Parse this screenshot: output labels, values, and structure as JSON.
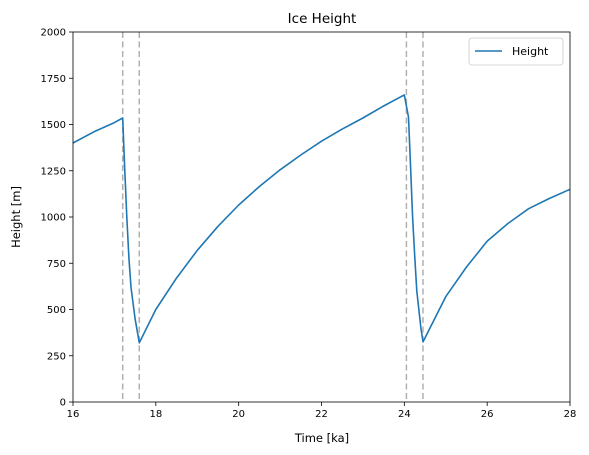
{
  "chart_data": {
    "type": "line",
    "title": "Ice Height",
    "xlabel": "Time [ka]",
    "ylabel": "Height [m]",
    "xlim": [
      16,
      28
    ],
    "ylim": [
      0,
      2000
    ],
    "xticks": [
      16,
      18,
      20,
      22,
      24,
      26,
      28
    ],
    "yticks": [
      0,
      250,
      500,
      750,
      1000,
      1250,
      1500,
      1750,
      2000
    ],
    "grid": false,
    "legend": {
      "position": "top-right",
      "entries": [
        "Height"
      ]
    },
    "series": [
      {
        "name": "Height",
        "color": "#1f77b4",
        "x": [
          16.0,
          16.5,
          17.0,
          17.2,
          17.25,
          17.3,
          17.35,
          17.4,
          17.5,
          17.6,
          18.0,
          18.5,
          19.0,
          19.5,
          20.0,
          20.5,
          21.0,
          21.5,
          22.0,
          22.5,
          23.0,
          23.5,
          24.0,
          24.1,
          24.15,
          24.2,
          24.25,
          24.3,
          24.4,
          24.45,
          25.0,
          25.5,
          26.0,
          26.5,
          27.0,
          27.5,
          28.0
        ],
        "y": [
          1400,
          1460,
          1510,
          1535,
          1250,
          1000,
          780,
          620,
          450,
          320,
          500,
          670,
          820,
          950,
          1065,
          1165,
          1255,
          1335,
          1410,
          1475,
          1535,
          1600,
          1660,
          1540,
          1280,
          1000,
          790,
          600,
          400,
          325,
          570,
          730,
          870,
          965,
          1045,
          1100,
          1150
        ]
      }
    ],
    "annotations": {
      "vertical_lines": {
        "color": "#b0b0b0",
        "style": "dashed",
        "x": [
          17.2,
          17.6,
          24.05,
          24.45
        ]
      }
    }
  }
}
